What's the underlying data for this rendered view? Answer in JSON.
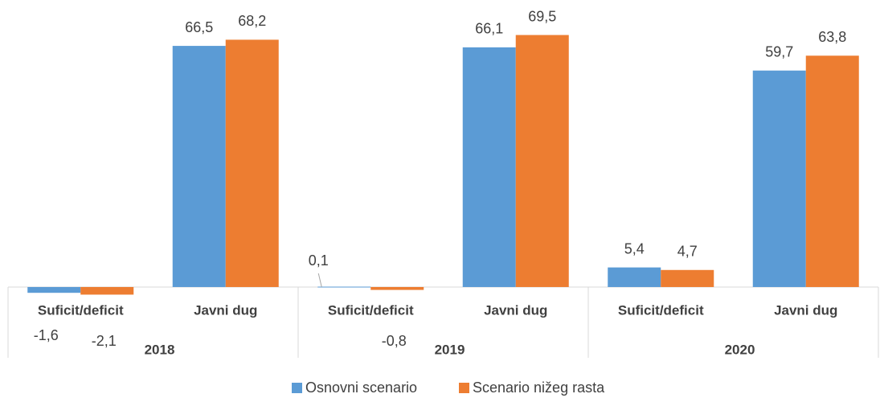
{
  "chart_data": {
    "type": "bar",
    "categories": [
      "Suficit/deficit",
      "Javni dug",
      "Suficit/deficit",
      "Javni dug",
      "Suficit/deficit",
      "Javni dug"
    ],
    "groups": [
      "2018",
      "2019",
      "2020"
    ],
    "series": [
      {
        "name": "Osnovni scenario",
        "color": "#5b9bd5",
        "values": [
          -1.6,
          66.5,
          0.1,
          66.1,
          5.4,
          59.7
        ],
        "value_labels": [
          "-1,6",
          "66,5",
          "0,1",
          "66,1",
          "5,4",
          "59,7"
        ]
      },
      {
        "name": "Scenario nižeg rasta",
        "color": "#ed7d31",
        "values": [
          -2.1,
          68.2,
          -0.8,
          69.5,
          4.7,
          63.8
        ],
        "value_labels": [
          "-2,1",
          "68,2",
          "-0,8",
          "69,5",
          "4,7",
          "63,8"
        ]
      }
    ],
    "ylim": [
      -3,
      79
    ],
    "legend": "bottom"
  }
}
